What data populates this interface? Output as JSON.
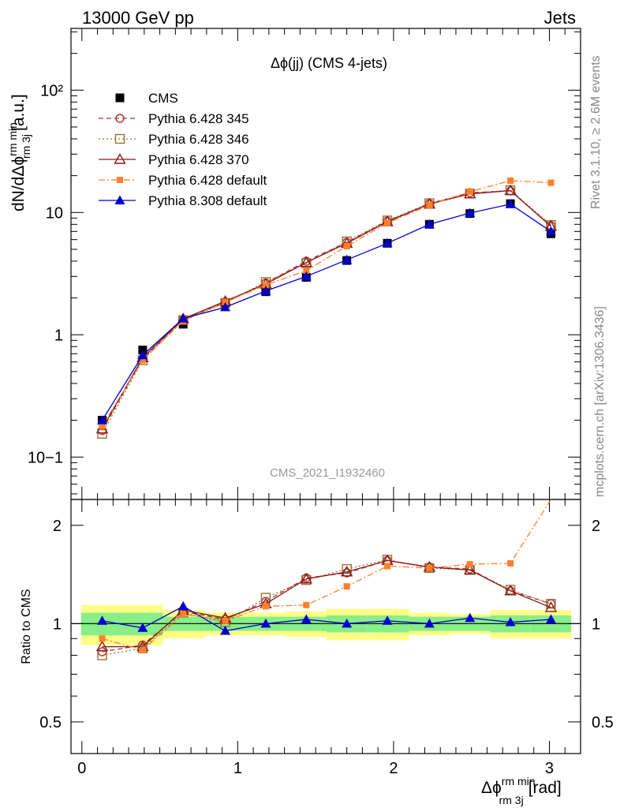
{
  "header": {
    "left": "13000 GeV pp",
    "right": "Jets"
  },
  "side_labels": {
    "rivet": "Rivet 3.1.10, ≥ 2.6M events",
    "mcplots": "mcplots.cern.ch [arXiv:1306.3436]"
  },
  "chart_data": [
    {
      "type": "line",
      "title": "Δϕ(jj) (CMS 4-jets)",
      "watermark": "CMS_2021_I1932460",
      "ylabel": "dN/dΔϕrm minrm 3j [a.u.]",
      "yscale": "log",
      "ylim": [
        0.045,
        320
      ],
      "xlim": [
        -0.07,
        3.2
      ],
      "y_tick_labels": [
        "10−1",
        "1",
        "10",
        "10²"
      ],
      "legend_position": "top-left",
      "x": [
        0.13,
        0.39,
        0.65,
        0.92,
        1.18,
        1.44,
        1.7,
        1.96,
        2.23,
        2.49,
        2.75,
        3.01
      ],
      "series": [
        {
          "name": "CMS",
          "color": "#000000",
          "marker": "filled-square",
          "line": "none",
          "values": [
            0.2,
            0.75,
            1.22,
            1.8,
            2.25,
            2.95,
            4.05,
            5.6,
            8.0,
            9.8,
            11.8,
            6.7
          ]
        },
        {
          "name": "Pythia 6.428 345",
          "color": "#b03030",
          "marker": "open-circle",
          "line": "dashed",
          "values": [
            0.165,
            0.64,
            1.33,
            1.85,
            2.65,
            4.0,
            5.7,
            8.5,
            11.8,
            14.5,
            15.0,
            7.8
          ]
        },
        {
          "name": "Pythia 6.428 346",
          "color": "#a07030",
          "marker": "open-square",
          "line": "dotted",
          "values": [
            0.155,
            0.62,
            1.32,
            1.82,
            2.7,
            3.85,
            5.8,
            8.6,
            11.9,
            14.3,
            15.2,
            7.9
          ]
        },
        {
          "name": "Pythia 6.428 370",
          "color": "#8b1a1a",
          "marker": "open-triangle",
          "line": "solid",
          "values": [
            0.17,
            0.65,
            1.35,
            1.88,
            2.6,
            3.9,
            5.6,
            8.4,
            11.7,
            14.2,
            15.1,
            7.7
          ]
        },
        {
          "name": "Pythia 6.428 default",
          "color": "#ff7f2a",
          "marker": "filled-square-small",
          "line": "dashdot",
          "values": [
            0.18,
            0.62,
            1.3,
            1.85,
            2.55,
            3.35,
            5.3,
            8.2,
            11.5,
            14.8,
            18.2,
            17.5
          ]
        },
        {
          "name": "Pythia 8.308 default",
          "color": "#0000cc",
          "marker": "filled-triangle",
          "line": "solid",
          "values": [
            0.2,
            0.68,
            1.36,
            1.68,
            2.28,
            3.0,
            4.1,
            5.6,
            8.0,
            9.9,
            11.7,
            7.0
          ]
        }
      ]
    },
    {
      "type": "line",
      "ylabel": "Ratio to CMS",
      "xlabel": "Δϕrm minrm 3j [rad]",
      "yscale": "log",
      "ylim": [
        0.4,
        2.4
      ],
      "xlim": [
        -0.07,
        3.2
      ],
      "y_tick_labels": [
        "0.5",
        "1",
        "2"
      ],
      "x_tick_labels": [
        "0",
        "1",
        "2",
        "3"
      ],
      "x": [
        0.13,
        0.39,
        0.65,
        0.92,
        1.18,
        1.44,
        1.7,
        1.96,
        2.23,
        2.49,
        2.75,
        3.01
      ],
      "band_edges": [
        -0.005,
        0.26,
        0.52,
        0.79,
        1.05,
        1.31,
        1.57,
        1.83,
        2.1,
        2.36,
        2.62,
        2.88,
        3.14
      ],
      "band_green_halfwidth": [
        0.08,
        0.08,
        0.05,
        0.05,
        0.05,
        0.05,
        0.06,
        0.06,
        0.05,
        0.05,
        0.06,
        0.06
      ],
      "band_yellow_halfwidth": [
        0.14,
        0.14,
        0.1,
        0.08,
        0.08,
        0.09,
        0.11,
        0.11,
        0.08,
        0.07,
        0.1,
        0.1
      ],
      "series": [
        {
          "name": "Pythia 6.428 345",
          "color": "#b03030",
          "marker": "open-circle",
          "line": "dashed",
          "values": [
            0.82,
            0.86,
            1.09,
            1.03,
            1.17,
            1.38,
            1.43,
            1.56,
            1.49,
            1.47,
            1.26,
            1.15
          ]
        },
        {
          "name": "Pythia 6.428 346",
          "color": "#a07030",
          "marker": "open-square",
          "line": "dotted",
          "values": [
            0.8,
            0.84,
            1.08,
            1.01,
            1.2,
            1.36,
            1.47,
            1.57,
            1.48,
            1.46,
            1.27,
            1.15
          ]
        },
        {
          "name": "Pythia 6.428 370",
          "color": "#8b1a1a",
          "marker": "open-triangle",
          "line": "solid",
          "values": [
            0.85,
            0.85,
            1.1,
            1.04,
            1.15,
            1.37,
            1.44,
            1.56,
            1.49,
            1.46,
            1.26,
            1.12
          ]
        },
        {
          "name": "Pythia 6.428 default",
          "color": "#ff7f2a",
          "marker": "filled-square-small",
          "line": "dashdot",
          "values": [
            0.9,
            0.83,
            1.07,
            1.02,
            1.13,
            1.14,
            1.3,
            1.5,
            1.48,
            1.52,
            1.53,
            2.5
          ]
        },
        {
          "name": "Pythia 8.308 default",
          "color": "#0000cc",
          "marker": "filled-triangle",
          "line": "solid",
          "values": [
            1.02,
            0.97,
            1.13,
            0.95,
            1.0,
            1.03,
            1.0,
            1.02,
            1.0,
            1.04,
            1.01,
            1.03
          ]
        }
      ]
    }
  ]
}
